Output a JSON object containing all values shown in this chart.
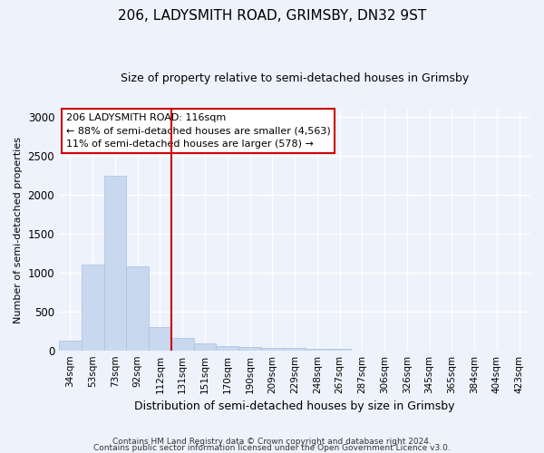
{
  "title1": "206, LADYSMITH ROAD, GRIMSBY, DN32 9ST",
  "title2": "Size of property relative to semi-detached houses in Grimsby",
  "xlabel": "Distribution of semi-detached houses by size in Grimsby",
  "ylabel": "Number of semi-detached properties",
  "footnote1": "Contains HM Land Registry data © Crown copyright and database right 2024.",
  "footnote2": "Contains public sector information licensed under the Open Government Licence v3.0.",
  "categories": [
    "34sqm",
    "53sqm",
    "73sqm",
    "92sqm",
    "112sqm",
    "131sqm",
    "151sqm",
    "170sqm",
    "190sqm",
    "209sqm",
    "229sqm",
    "248sqm",
    "267sqm",
    "287sqm",
    "306sqm",
    "326sqm",
    "345sqm",
    "365sqm",
    "384sqm",
    "404sqm",
    "423sqm"
  ],
  "values": [
    130,
    1100,
    2250,
    1080,
    300,
    160,
    90,
    55,
    45,
    35,
    30,
    25,
    25,
    0,
    0,
    0,
    0,
    0,
    0,
    0,
    0
  ],
  "bar_color": "#c8d8ef",
  "bar_edge_color": "#a8c0e0",
  "vline_color": "#cc0000",
  "vline_index": 4,
  "annotation_line1": "206 LADYSMITH ROAD: 116sqm",
  "annotation_line2": "← 88% of semi-detached houses are smaller (4,563)",
  "annotation_line3": "11% of semi-detached houses are larger (578) →",
  "annotation_box_color": "#ffffff",
  "annotation_box_edge": "#cc0000",
  "ylim": [
    0,
    3100
  ],
  "yticks": [
    0,
    500,
    1000,
    1500,
    2000,
    2500,
    3000
  ],
  "background_color": "#eef2fb",
  "grid_color": "#ffffff",
  "title1_fontsize": 11,
  "title2_fontsize": 9,
  "ylabel_fontsize": 8,
  "xlabel_fontsize": 9,
  "footnote_fontsize": 6.5,
  "tick_fontsize": 7.5,
  "annot_fontsize": 8
}
